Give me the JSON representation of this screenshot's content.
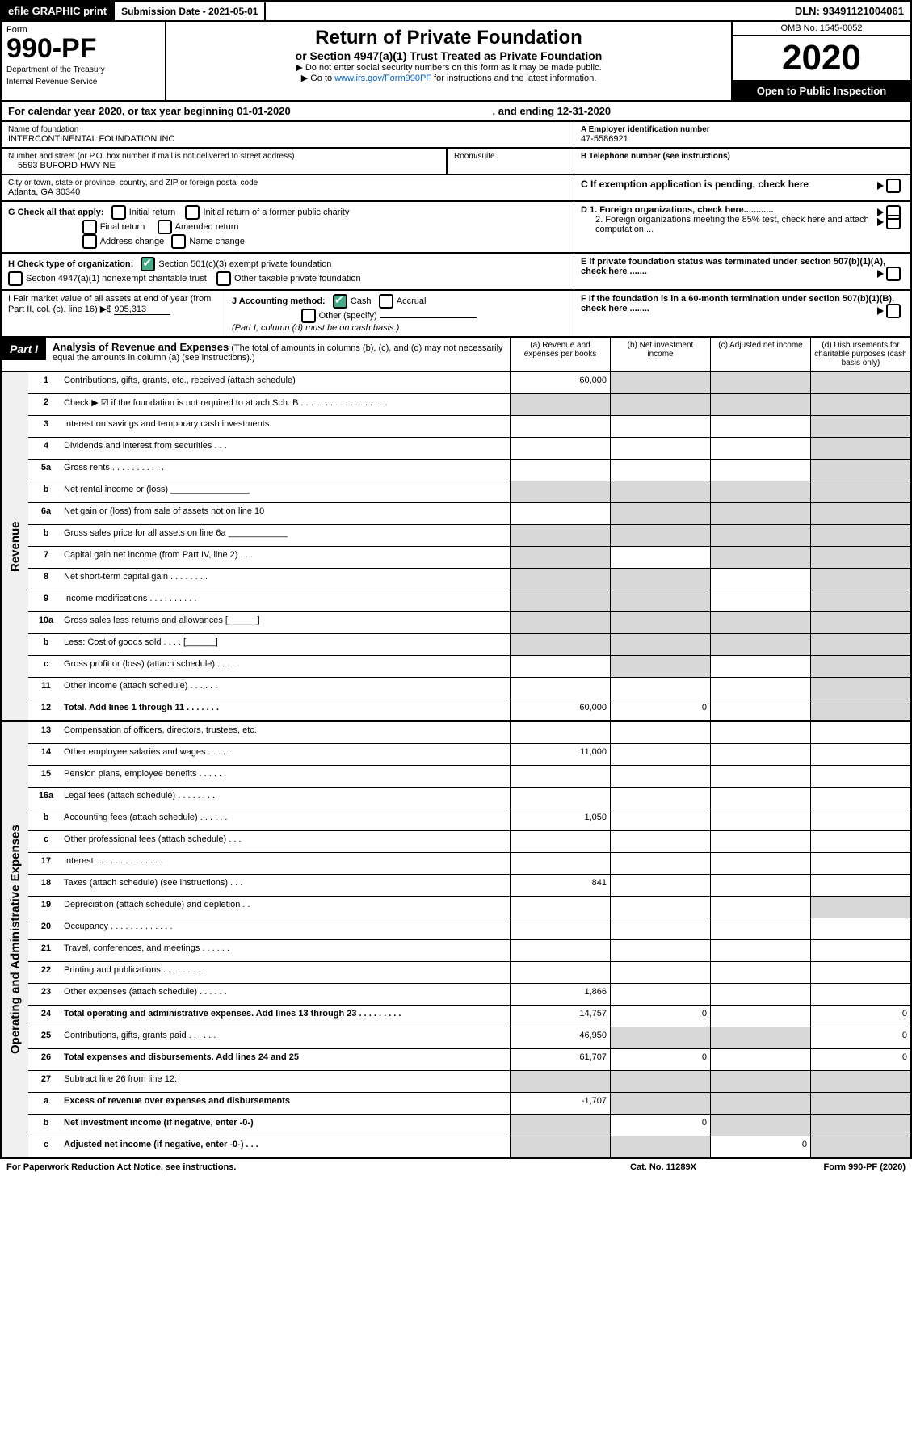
{
  "topbar": {
    "efile": "efile GRAPHIC print",
    "subdate": "Submission Date - 2021-05-01",
    "dln": "DLN: 93491121004061"
  },
  "header": {
    "form": "Form",
    "formno": "990-PF",
    "dept": "Department of the Treasury",
    "irs": "Internal Revenue Service",
    "title": "Return of Private Foundation",
    "subtitle": "or Section 4947(a)(1) Trust Treated as Private Foundation",
    "inst1": "▶ Do not enter social security numbers on this form as it may be made public.",
    "inst2": "▶ Go to ",
    "inst2link": "www.irs.gov/Form990PF",
    "inst2b": " for instructions and the latest information.",
    "omb": "OMB No. 1545-0052",
    "year": "2020",
    "open": "Open to Public Inspection"
  },
  "cal": {
    "left": "For calendar year 2020, or tax year beginning 01-01-2020",
    "right": ", and ending 12-31-2020"
  },
  "foundation": {
    "namelbl": "Name of foundation",
    "name": "INTERCONTINENTAL FOUNDATION INC",
    "einlbl": "A Employer identification number",
    "ein": "47-5586921",
    "addrlbl": "Number and street (or P.O. box number if mail is not delivered to street address)",
    "addr": "5593 BUFORD HWY NE",
    "roomlbl": "Room/suite",
    "room": "",
    "tellbl": "B Telephone number (see instructions)",
    "tel": "",
    "citylbl": "City or town, state or province, country, and ZIP or foreign postal code",
    "city": "Atlanta, GA  30340",
    "clabel": "C If exemption application is pending, check here"
  },
  "g": {
    "label": "G Check all that apply:",
    "opts": [
      "Initial return",
      "Initial return of a former public charity",
      "Final return",
      "Amended return",
      "Address change",
      "Name change"
    ]
  },
  "d": {
    "d1": "D 1. Foreign organizations, check here............",
    "d2": "2. Foreign organizations meeting the 85% test, check here and attach computation ..."
  },
  "h": {
    "label": "H Check type of organization:",
    "o1": "Section 501(c)(3) exempt private foundation",
    "o2": "Section 4947(a)(1) nonexempt charitable trust",
    "o3": "Other taxable private foundation"
  },
  "e": {
    "txt": "E  If private foundation status was terminated under section 507(b)(1)(A), check here ......."
  },
  "i": {
    "label": "I Fair market value of all assets at end of year (from Part II, col. (c), line 16) ▶$ ",
    "val": "905,313"
  },
  "j": {
    "label": "J Accounting method:",
    "cash": "Cash",
    "accrual": "Accrual",
    "other": "Other (specify)",
    "note": "(Part I, column (d) must be on cash basis.)"
  },
  "f": {
    "txt": "F  If the foundation is in a 60-month termination under section 507(b)(1)(B), check here ........"
  },
  "parti": {
    "tab": "Part I",
    "title": "Analysis of Revenue and Expenses",
    "note": "(The total of amounts in columns (b), (c), and (d) may not necessarily equal the amounts in column (a) (see instructions).)",
    "cols": {
      "a": "(a)  Revenue and expenses per books",
      "b": "(b)  Net investment income",
      "c": "(c)  Adjusted net income",
      "d": "(d)  Disbursements for charitable purposes (cash basis only)"
    }
  },
  "revenue": {
    "stub": "Revenue",
    "rows": [
      {
        "n": "1",
        "t": "Contributions, gifts, grants, etc., received (attach schedule)",
        "a": "60,000",
        "bg": [
          "",
          "g",
          "g",
          "g"
        ]
      },
      {
        "n": "2",
        "t": "Check ▶ ☑ if the foundation is not required to attach Sch. B  . . . . . . . . . . . . . . . . . .",
        "bg": [
          "g",
          "g",
          "g",
          "g"
        ]
      },
      {
        "n": "3",
        "t": "Interest on savings and temporary cash investments",
        "bg": [
          "",
          "",
          "",
          "g"
        ]
      },
      {
        "n": "4",
        "t": "Dividends and interest from securities   .  .  .",
        "bg": [
          "",
          "",
          "",
          "g"
        ]
      },
      {
        "n": "5a",
        "t": "Gross rents    . . . . . . . . . . .",
        "bg": [
          "",
          "",
          "",
          "g"
        ]
      },
      {
        "n": "b",
        "t": "Net rental income or (loss)   ________________",
        "bg": [
          "g",
          "g",
          "g",
          "g"
        ]
      },
      {
        "n": "6a",
        "t": "Net gain or (loss) from sale of assets not on line 10",
        "bg": [
          "",
          "g",
          "g",
          "g"
        ]
      },
      {
        "n": "b",
        "t": "Gross sales price for all assets on line 6a  ____________",
        "bg": [
          "g",
          "g",
          "g",
          "g"
        ]
      },
      {
        "n": "7",
        "t": "Capital gain net income (from Part IV, line 2)   .  .  .",
        "bg": [
          "g",
          "",
          "g",
          "g"
        ]
      },
      {
        "n": "8",
        "t": "Net short-term capital gain  . . . . . . . .",
        "bg": [
          "g",
          "g",
          "",
          "g"
        ]
      },
      {
        "n": "9",
        "t": "Income modifications . . . . . . . . . .",
        "bg": [
          "g",
          "g",
          "",
          "g"
        ]
      },
      {
        "n": "10a",
        "t": "Gross sales less returns and allowances  [______]",
        "bg": [
          "g",
          "g",
          "g",
          "g"
        ]
      },
      {
        "n": "b",
        "t": "Less: Cost of goods sold   .  .  .  .  [______]",
        "bg": [
          "g",
          "g",
          "g",
          "g"
        ]
      },
      {
        "n": "c",
        "t": "Gross profit or (loss) (attach schedule)   .  .  .  .  .",
        "bg": [
          "",
          "g",
          "",
          "g"
        ]
      },
      {
        "n": "11",
        "t": "Other income (attach schedule)   .  .  .  .  .  .",
        "bg": [
          "",
          "",
          "",
          "g"
        ]
      },
      {
        "n": "12",
        "t": "Total. Add lines 1 through 11   .  .  .  .  .  .  .",
        "a": "60,000",
        "b": "0",
        "bold": true,
        "bg": [
          "",
          "",
          "",
          "g"
        ]
      }
    ]
  },
  "expenses": {
    "stub": "Operating and Administrative Expenses",
    "rows": [
      {
        "n": "13",
        "t": "Compensation of officers, directors, trustees, etc.",
        "bg": [
          "",
          "",
          "",
          ""
        ]
      },
      {
        "n": "14",
        "t": "Other employee salaries and wages   .  .  .  .  .",
        "a": "11,000",
        "bg": [
          "",
          "",
          "",
          ""
        ]
      },
      {
        "n": "15",
        "t": "Pension plans, employee benefits  .  .  .  .  .  .",
        "bg": [
          "",
          "",
          "",
          ""
        ]
      },
      {
        "n": "16a",
        "t": "Legal fees (attach schedule) .  .  .  .  .  .  .  .",
        "bg": [
          "",
          "",
          "",
          ""
        ]
      },
      {
        "n": "b",
        "t": "Accounting fees (attach schedule)  .  .  .  .  .  .",
        "a": "1,050",
        "bg": [
          "",
          "",
          "",
          ""
        ]
      },
      {
        "n": "c",
        "t": "Other professional fees (attach schedule)   .  .  .",
        "bg": [
          "",
          "",
          "",
          ""
        ]
      },
      {
        "n": "17",
        "t": "Interest  .  .  .  .  .  .  .  .  .  .  .  .  .  .",
        "bg": [
          "",
          "",
          "",
          ""
        ]
      },
      {
        "n": "18",
        "t": "Taxes (attach schedule) (see instructions)   .  .  .",
        "a": "841",
        "bg": [
          "",
          "",
          "",
          ""
        ]
      },
      {
        "n": "19",
        "t": "Depreciation (attach schedule) and depletion   .  .",
        "bg": [
          "",
          "",
          "",
          "g"
        ]
      },
      {
        "n": "20",
        "t": "Occupancy .  .  .  .  .  .  .  .  .  .  .  .  .",
        "bg": [
          "",
          "",
          "",
          ""
        ]
      },
      {
        "n": "21",
        "t": "Travel, conferences, and meetings  .  .  .  .  .  .",
        "bg": [
          "",
          "",
          "",
          ""
        ]
      },
      {
        "n": "22",
        "t": "Printing and publications .  .  .  .  .  .  .  .  .",
        "bg": [
          "",
          "",
          "",
          ""
        ]
      },
      {
        "n": "23",
        "t": "Other expenses (attach schedule)  .  .  .  .  .  .",
        "a": "1,866",
        "bg": [
          "",
          "",
          "",
          ""
        ]
      },
      {
        "n": "24",
        "t": "Total operating and administrative expenses. Add lines 13 through 23  .  .  .  .  .  .  .  .  .",
        "a": "14,757",
        "b": "0",
        "d": "0",
        "bold": true,
        "bg": [
          "",
          "",
          "",
          ""
        ]
      },
      {
        "n": "25",
        "t": "Contributions, gifts, grants paid   .  .  .  .  .  .",
        "a": "46,950",
        "d": "0",
        "bg": [
          "",
          "g",
          "g",
          ""
        ]
      },
      {
        "n": "26",
        "t": "Total expenses and disbursements. Add lines 24 and 25",
        "a": "61,707",
        "b": "0",
        "d": "0",
        "bold": true,
        "bg": [
          "",
          "",
          "",
          ""
        ]
      },
      {
        "n": "27",
        "t": "Subtract line 26 from line 12:",
        "bg": [
          "g",
          "g",
          "g",
          "g"
        ]
      },
      {
        "n": "a",
        "t": "Excess of revenue over expenses and disbursements",
        "a": "-1,707",
        "bold": true,
        "bg": [
          "",
          "g",
          "g",
          "g"
        ]
      },
      {
        "n": "b",
        "t": "Net investment income (if negative, enter -0-)",
        "b": "0",
        "bold": true,
        "bg": [
          "g",
          "",
          "g",
          "g"
        ]
      },
      {
        "n": "c",
        "t": "Adjusted net income (if negative, enter -0-)   .  .  .",
        "c": "0",
        "bold": true,
        "bg": [
          "g",
          "g",
          "",
          "g"
        ]
      }
    ]
  },
  "footer": {
    "l": "For Paperwork Reduction Act Notice, see instructions.",
    "m": "Cat. No. 11289X",
    "r": "Form 990-PF (2020)"
  }
}
